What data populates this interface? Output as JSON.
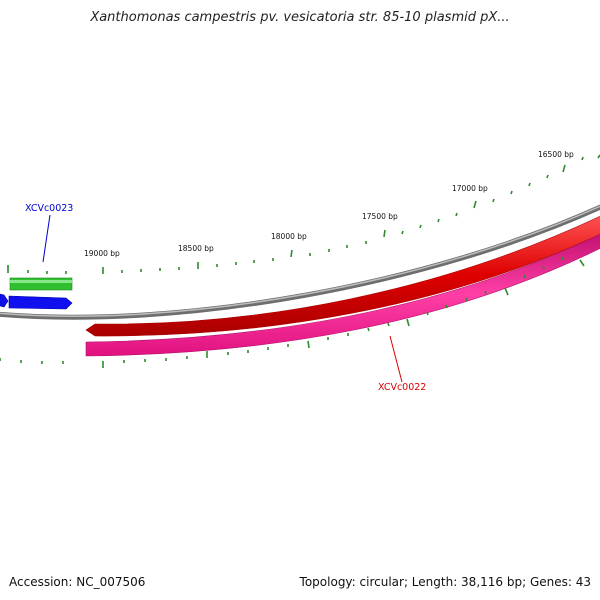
{
  "title": "Xanthomonas campestris pv. vesicatoria str. 85-10 plasmid pX...",
  "footer": {
    "accession": "Accession: NC_007506",
    "summary": "Topology: circular; Length: 38,116 bp; Genes: 43"
  },
  "colors": {
    "backbone": "#808080",
    "forward_gene": "#dd0000",
    "reverse_gene": "#e8127f",
    "gene_blue": "#1010ee",
    "gene_green": "#2fbf2f",
    "ticks": "#2e8b2e"
  },
  "ruler": {
    "labels": [
      "16500 bp",
      "17000 bp",
      "17500 bp",
      "18000 bp",
      "18500 bp",
      "19000 bp"
    ]
  },
  "genes": {
    "XCVc0023": {
      "label": "XCVc0023",
      "color": "#0000cc"
    },
    "XCVc0022": {
      "label": "XCVc0022",
      "color": "#dd0000"
    }
  }
}
